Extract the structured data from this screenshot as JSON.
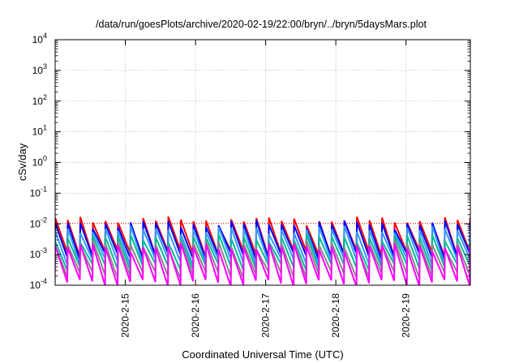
{
  "chart_data": {
    "type": "line",
    "title": "/data/run/goesPlots/archive/2020-02-19/22:00/bryn/../bryn/5daysMars.plot",
    "xlabel": "Coordinated Universal Time (UTC)",
    "ylabel": "cSv/day",
    "yscale": "log",
    "ylim": [
      0.0001,
      10000
    ],
    "xlim": [
      "2020-02-14T00:00",
      "2020-02-19T22:00"
    ],
    "grid": true,
    "legend": "none",
    "y_ticks": [
      {
        "base": "10",
        "exp": "-4"
      },
      {
        "base": "10",
        "exp": "-3"
      },
      {
        "base": "10",
        "exp": "-2"
      },
      {
        "base": "10",
        "exp": "-1"
      },
      {
        "base": "10",
        "exp": "0"
      },
      {
        "base": "10",
        "exp": "1"
      },
      {
        "base": "10",
        "exp": "2"
      },
      {
        "base": "10",
        "exp": "3"
      },
      {
        "base": "10",
        "exp": "4"
      }
    ],
    "x_ticks": [
      {
        "label": "2020-2-15",
        "x": "2020-02-15T00:00"
      },
      {
        "label": "2020-2-16",
        "x": "2020-02-16T00:00"
      },
      {
        "label": "2020-2-17",
        "x": "2020-02-17T00:00"
      },
      {
        "label": "2020-2-18",
        "x": "2020-02-18T00:00"
      },
      {
        "label": "2020-2-19",
        "x": "2020-02-19T00:00"
      }
    ],
    "series_pattern": {
      "description": "sawtooth: each period rises linearly (log scale) from a trough to a peak then drops",
      "period_hours": 4.3,
      "first_peak": "2020-02-14T00:00"
    },
    "series": [
      {
        "color": "#ff0000",
        "peak": 0.013,
        "trough": 0.0011
      },
      {
        "color": "#0000ff",
        "peak": 0.01,
        "trough": 0.0009
      },
      {
        "color": "#3399ff",
        "peak": 0.0065,
        "trough": 0.0006
      },
      {
        "color": "#00bb99",
        "peak": 0.0035,
        "trough": 0.0004
      },
      {
        "color": "#888888",
        "peak": 0.0022,
        "trough": 0.00022
      },
      {
        "color": "#ff00ff",
        "peak": 0.0018,
        "trough": 0.00012
      }
    ],
    "reference_line": {
      "color": "#ff0000",
      "value": 0.0105,
      "style": "dotted"
    }
  }
}
